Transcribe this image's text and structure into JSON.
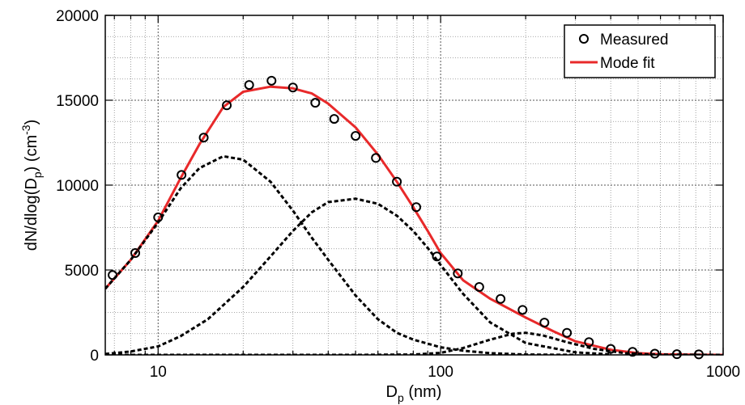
{
  "chart_data": {
    "type": "line",
    "title": "",
    "xlabel": {
      "main": "D",
      "sub": "p",
      "tail": " (nm)"
    },
    "ylabel": {
      "main": "dN/dlog(D",
      "sub": "p",
      "mid": ") (cm",
      "sup": "-3",
      "tail": ")"
    },
    "x_scale": "log",
    "xlim": [
      6.5,
      1000
    ],
    "ylim": [
      0,
      20000
    ],
    "x_ticks": [
      10,
      100,
      1000
    ],
    "x_tick_labels": [
      "10",
      "100",
      "1000"
    ],
    "y_ticks": [
      0,
      5000,
      10000,
      15000,
      20000
    ],
    "y_tick_labels": [
      "0",
      "5000",
      "10000",
      "15000",
      "20000"
    ],
    "grid": true,
    "legend": {
      "position": "top-right",
      "entries": [
        "Measured",
        "Mode fit"
      ]
    },
    "colors": {
      "measured": "#000000",
      "fit": "#e8292a",
      "modes": "#000000"
    },
    "series": [
      {
        "name": "Measured",
        "style": "markers",
        "x": [
          6.9,
          8.3,
          10.0,
          12.1,
          14.5,
          17.5,
          21.0,
          25.2,
          30.0,
          36.0,
          42.0,
          50.0,
          59.0,
          70.0,
          82.0,
          97.0,
          115.0,
          137.0,
          163.0,
          195.0,
          233.0,
          280.0,
          335.0,
          400.0,
          478.0,
          573.0,
          686.0,
          820.0
        ],
        "y": [
          4700,
          6000,
          8100,
          10600,
          12800,
          14700,
          15900,
          16150,
          15750,
          14850,
          13900,
          12900,
          11600,
          10200,
          8700,
          5800,
          4800,
          4000,
          3300,
          2650,
          1900,
          1300,
          750,
          350,
          180,
          70,
          40,
          30
        ]
      },
      {
        "name": "Mode fit",
        "style": "line",
        "x": [
          6.5,
          8,
          10,
          12,
          14,
          17,
          20,
          25,
          30,
          35,
          40,
          50,
          60,
          70,
          80,
          90,
          100,
          120,
          150,
          200,
          250,
          300,
          400,
          500,
          600,
          800,
          1000
        ],
        "y": [
          3900,
          5600,
          7900,
          10400,
          12400,
          14600,
          15500,
          15800,
          15700,
          15400,
          14800,
          13400,
          11800,
          10200,
          8700,
          7300,
          6000,
          4400,
          3300,
          2200,
          1400,
          800,
          300,
          100,
          40,
          10,
          0
        ]
      },
      {
        "name": "",
        "style": "dashed",
        "x": [
          6.5,
          8,
          10,
          12,
          14,
          17,
          20,
          25,
          30,
          35,
          40,
          50,
          60,
          70,
          80,
          100,
          120,
          150,
          200,
          300
        ],
        "y": [
          3900,
          5600,
          7800,
          9800,
          11000,
          11700,
          11500,
          10200,
          8500,
          6900,
          5600,
          3500,
          2100,
          1300,
          900,
          450,
          250,
          100,
          20,
          0
        ]
      },
      {
        "name": "",
        "style": "dashed",
        "x": [
          6.5,
          8,
          10,
          12,
          15,
          20,
          25,
          30,
          35,
          40,
          50,
          60,
          70,
          80,
          90,
          100,
          120,
          150,
          200,
          300,
          400
        ],
        "y": [
          50,
          200,
          500,
          1100,
          2100,
          4000,
          5800,
          7300,
          8400,
          9000,
          9200,
          8900,
          8200,
          7300,
          6300,
          5300,
          3600,
          1900,
          700,
          150,
          30
        ]
      },
      {
        "name": "",
        "style": "dashed",
        "x": [
          6.5,
          50,
          80,
          100,
          120,
          150,
          180,
          200,
          230,
          280,
          350,
          450,
          550,
          700,
          1000
        ],
        "y": [
          0,
          0,
          20,
          120,
          400,
          900,
          1250,
          1300,
          1150,
          750,
          350,
          100,
          30,
          5,
          0
        ]
      }
    ]
  }
}
